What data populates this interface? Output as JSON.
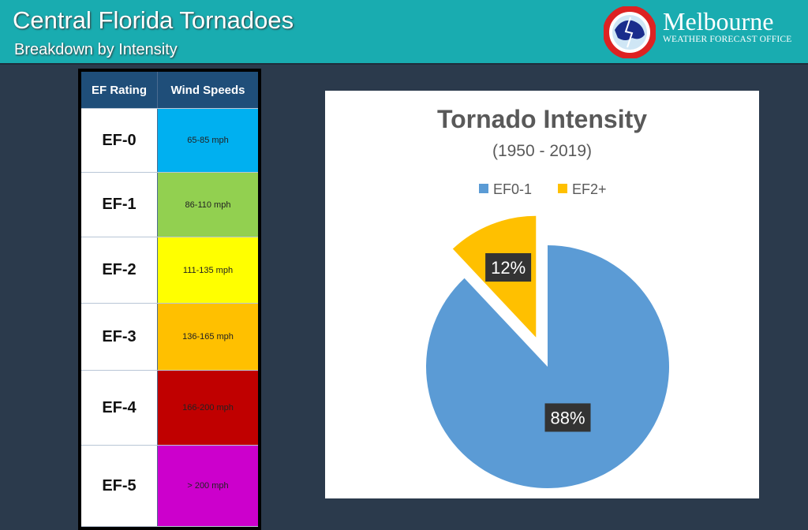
{
  "header": {
    "title": "Central Florida Tornadoes",
    "subtitle": "Breakdown by Intensity",
    "office_name": "Melbourne",
    "office_sub": "WEATHER FORECAST OFFICE",
    "logo_text": "NATIONAL WEATHER SERVICE"
  },
  "ef_table": {
    "headers": [
      "EF Rating",
      "Wind Speeds"
    ],
    "rows": [
      {
        "rating": "EF-0",
        "speed": "65-85 mph",
        "color": "#00b0f0"
      },
      {
        "rating": "EF-1",
        "speed": "86-110 mph",
        "color": "#92d050"
      },
      {
        "rating": "EF-2",
        "speed": "111-135 mph",
        "color": "#ffff00"
      },
      {
        "rating": "EF-3",
        "speed": "136-165 mph",
        "color": "#ffc000"
      },
      {
        "rating": "EF-4",
        "speed": "166-200 mph",
        "color": "#c00000"
      },
      {
        "rating": "EF-5",
        "speed": "> 200 mph",
        "color": "#cc00cc"
      }
    ]
  },
  "chart_data": {
    "type": "pie",
    "title": "Tornado Intensity",
    "subtitle": "(1950 - 2019)",
    "legend_position": "top",
    "slices": [
      {
        "name": "EF0-1",
        "value": 88,
        "label": "88%",
        "color": "#5b9bd5"
      },
      {
        "name": "EF2+",
        "value": 12,
        "label": "12%",
        "color": "#ffc000",
        "exploded": true
      }
    ]
  }
}
